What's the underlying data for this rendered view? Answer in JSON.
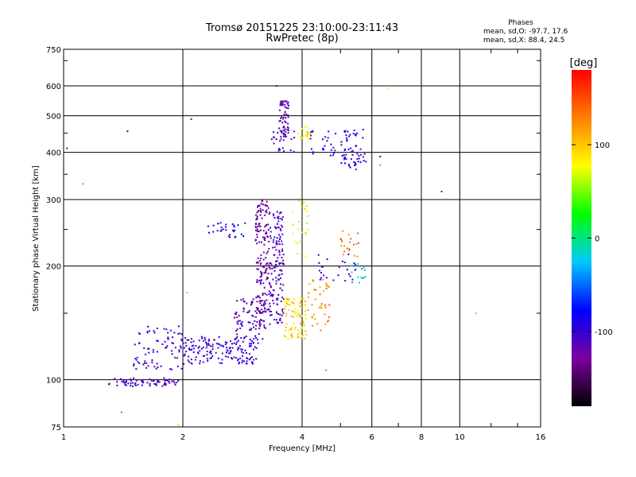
{
  "chart_data": {
    "type": "scatter",
    "title": "Tromsø 20151225 23:10:00-23:11:43",
    "subtitle": "RwPretec (8p)",
    "xlabel": "Frequency [MHz]",
    "ylabel": "Stationary phase Virtual Height [km]",
    "x_scale": "log",
    "y_scale": "log",
    "xlim": [
      1,
      16
    ],
    "ylim": [
      75,
      750
    ],
    "x_ticks": [
      1,
      2,
      4,
      6,
      8,
      10,
      16
    ],
    "y_ticks": [
      75,
      100,
      200,
      300,
      400,
      500,
      600,
      750
    ],
    "grid": true,
    "stats": {
      "heading": "Phases",
      "line_o": "mean, sd,O: -97.7, 17.6",
      "line_x": "mean, sd,X:  88.4, 24.5"
    },
    "colorbar": {
      "label": "[deg]",
      "min": -180,
      "max": 180,
      "ticks": [
        100,
        0,
        -100
      ],
      "colors": [
        "#000000",
        "#7a00a0",
        "#0000ff",
        "#00c8ff",
        "#00ff00",
        "#ffff00",
        "#ff8000",
        "#ff0000"
      ]
    },
    "clusters": [
      {
        "x": [
          1.3,
          1.95
        ],
        "y": [
          96,
          101
        ],
        "phase": -110,
        "count": 70
      },
      {
        "x": [
          1.5,
          2.0
        ],
        "y": [
          106,
          140
        ],
        "phase": -105,
        "count": 80
      },
      {
        "x": [
          2.0,
          3.1
        ],
        "y": [
          110,
          130
        ],
        "phase": -100,
        "count": 170
      },
      {
        "x": [
          2.7,
          3.25
        ],
        "y": [
          128,
          165
        ],
        "phase": -110,
        "count": 80
      },
      {
        "x": [
          3.05,
          3.3
        ],
        "y": [
          150,
          300
        ],
        "phase": -125,
        "count": 160
      },
      {
        "x": [
          3.3,
          3.6
        ],
        "y": [
          140,
          280
        ],
        "phase": -110,
        "count": 150
      },
      {
        "x": [
          3.6,
          4.1
        ],
        "y": [
          128,
          165
        ],
        "phase": 95,
        "count": 90
      },
      {
        "x": [
          4.1,
          4.7
        ],
        "y": [
          135,
          185
        ],
        "phase": 125,
        "count": 40
      },
      {
        "x": [
          3.75,
          4.15
        ],
        "y": [
          200,
          300
        ],
        "phase": 75,
        "count": 25
      },
      {
        "x": [
          2.3,
          2.9
        ],
        "y": [
          238,
          262
        ],
        "phase": -95,
        "count": 30
      },
      {
        "x": [
          3.5,
          3.7
        ],
        "y": [
          440,
          550
        ],
        "phase": -115,
        "count": 60
      },
      {
        "x": [
          3.3,
          3.9
        ],
        "y": [
          400,
          460
        ],
        "phase": -110,
        "count": 25
      },
      {
        "x": [
          3.9,
          4.2
        ],
        "y": [
          430,
          470
        ],
        "phase": 80,
        "count": 20
      },
      {
        "x": [
          4.2,
          4.9
        ],
        "y": [
          390,
          460
        ],
        "phase": -90,
        "count": 25
      },
      {
        "x": [
          5.0,
          5.8
        ],
        "y": [
          360,
          460
        ],
        "phase": -95,
        "count": 60
      },
      {
        "x": [
          5.0,
          5.6
        ],
        "y": [
          210,
          250
        ],
        "phase": 130,
        "count": 20
      },
      {
        "x": [
          5.3,
          5.8
        ],
        "y": [
          180,
          205
        ],
        "phase": -20,
        "count": 15
      },
      {
        "x": [
          4.3,
          5.5
        ],
        "y": [
          180,
          215
        ],
        "phase": -100,
        "count": 25
      }
    ],
    "points": [
      {
        "x": 1.02,
        "y": 410,
        "phase": -100
      },
      {
        "x": 1.12,
        "y": 330,
        "phase": -20
      },
      {
        "x": 1.45,
        "y": 455,
        "phase": -100
      },
      {
        "x": 2.1,
        "y": 490,
        "phase": -110
      },
      {
        "x": 3.45,
        "y": 600,
        "phase": -110
      },
      {
        "x": 9.0,
        "y": 315,
        "phase": -60
      },
      {
        "x": 11.0,
        "y": 150,
        "phase": 110
      },
      {
        "x": 4.6,
        "y": 106,
        "phase": -30
      },
      {
        "x": 1.4,
        "y": 82,
        "phase": 150
      },
      {
        "x": 1.95,
        "y": 76,
        "phase": 60
      },
      {
        "x": 6.3,
        "y": 390,
        "phase": -100
      },
      {
        "x": 6.3,
        "y": 370,
        "phase": -20
      },
      {
        "x": 6.6,
        "y": 590,
        "phase": 80
      },
      {
        "x": 2.05,
        "y": 170,
        "phase": 110
      }
    ]
  }
}
